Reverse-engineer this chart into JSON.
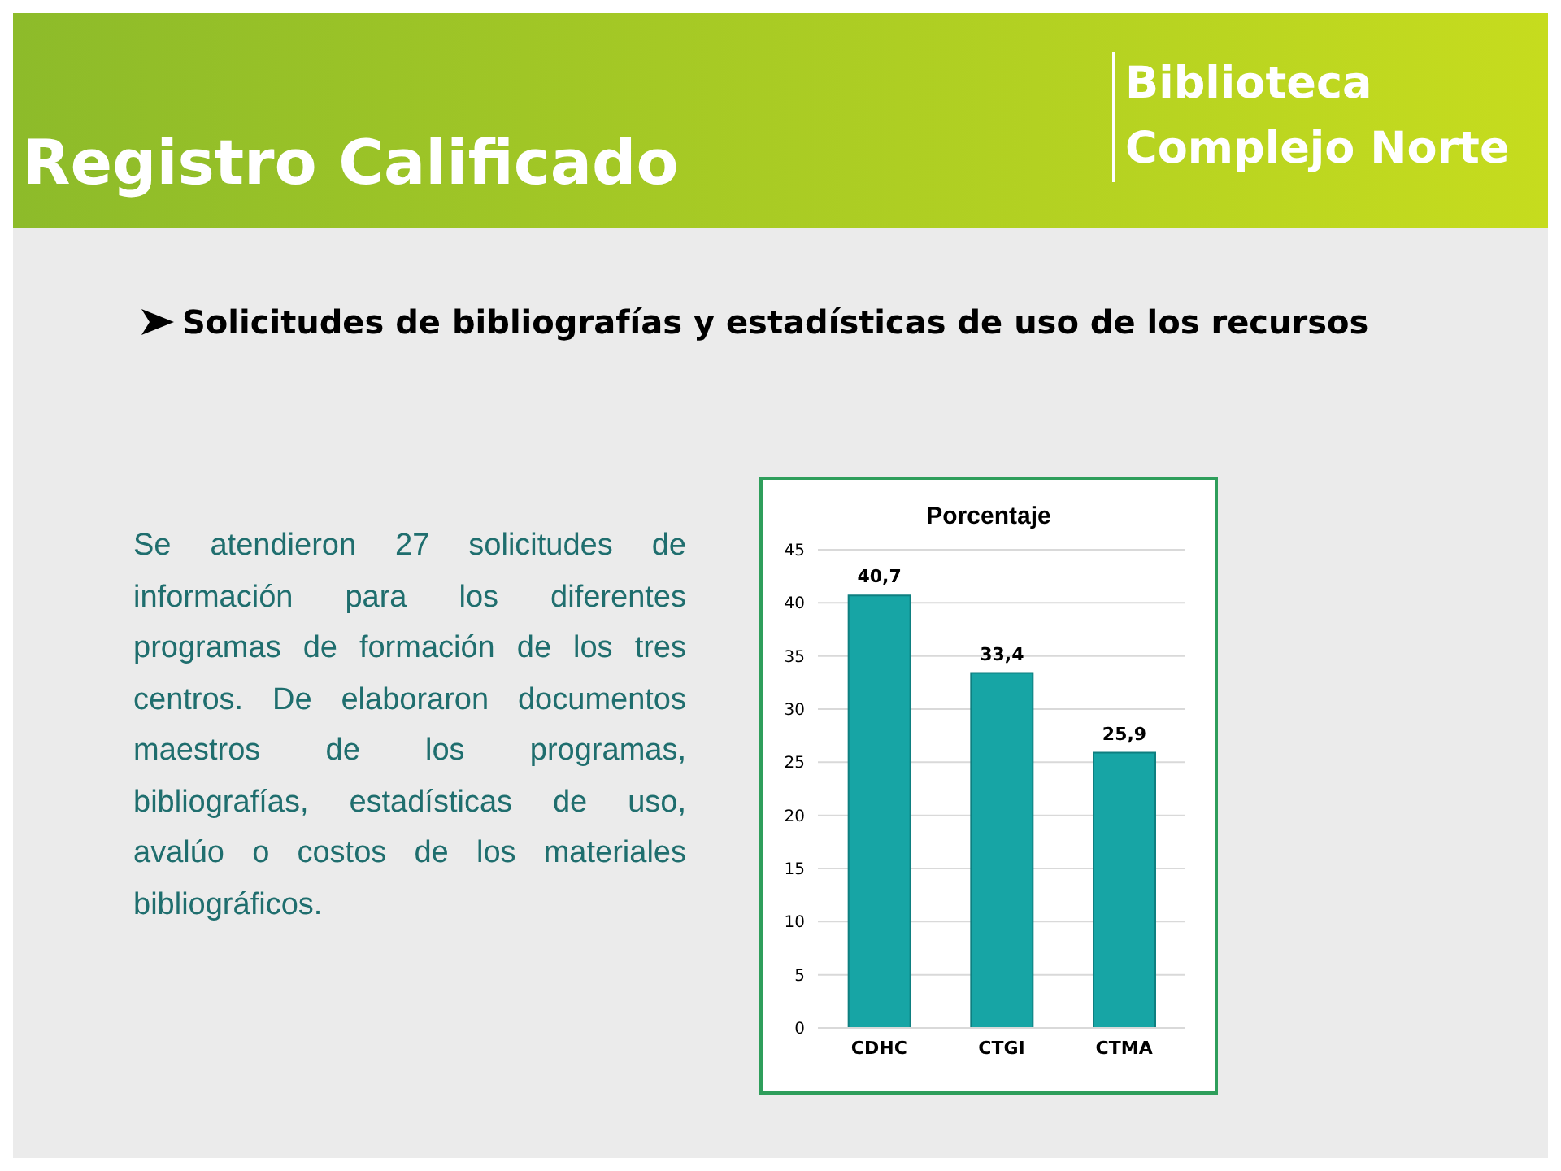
{
  "chart_data": {
    "type": "bar",
    "title": "Porcentaje",
    "annotations": [
      "Registro Calificado",
      "Biblioteca Complejo Norte",
      "Solicitudes de bibliografías y estadísticas de uso de los recursos",
      "Se atendieron  27 solicitudes de información para los diferentes programas de formación de los tres centros. De elaboraron documentos maestros de los programas, bibliografías, estadísticas de uso, avalúo o costos de los materiales bibliográficos."
    ],
    "categories": [
      "CDHC",
      "CTGI",
      "CTMA"
    ],
    "values": [
      40.7,
      33.4,
      25.9
    ],
    "value_labels": [
      "40,7",
      "33,4",
      "25,9"
    ],
    "color": "#17a5a5",
    "ylim": [
      0,
      45
    ],
    "yticks": [
      0,
      5,
      10,
      15,
      20,
      25,
      30,
      35,
      40,
      45
    ],
    "grid": "y"
  }
}
